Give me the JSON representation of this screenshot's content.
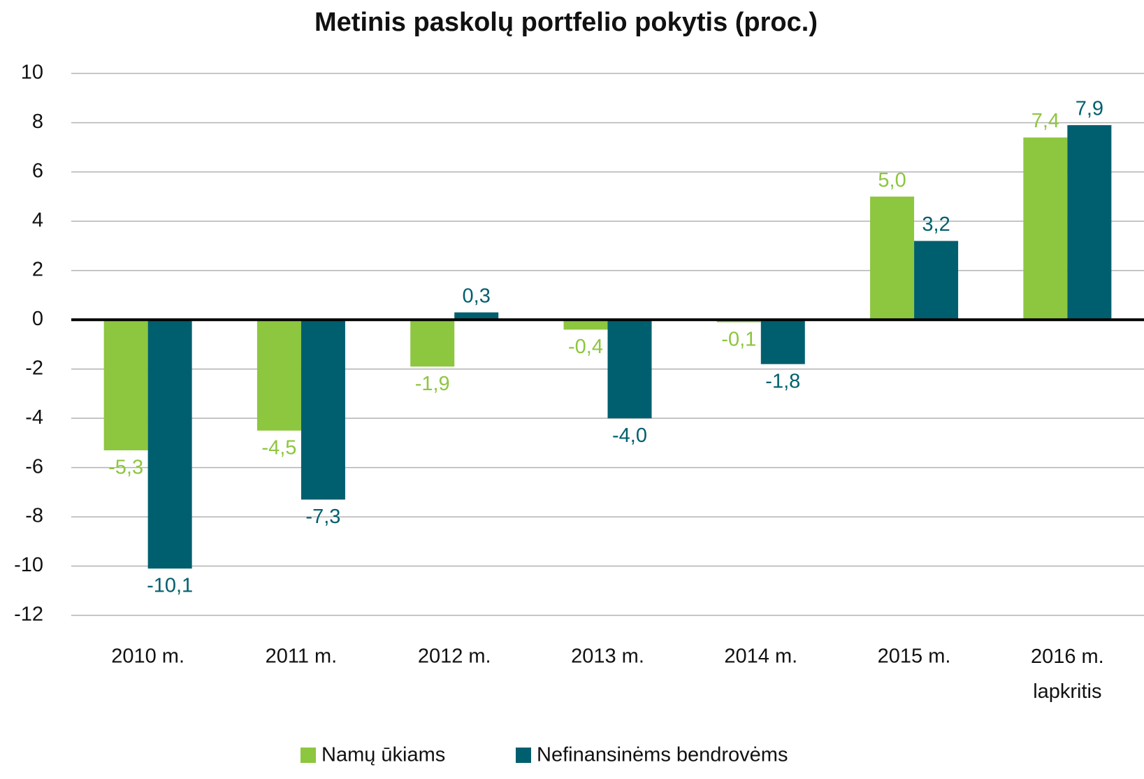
{
  "chart_data": {
    "type": "bar",
    "title": "Metinis paskolų portfelio pokytis (proc.)",
    "categories": [
      "2010 m.",
      "2011 m.",
      "2012 m.",
      "2013 m.",
      "2014 m.",
      "2015 m.",
      "2016 m. lapkritis"
    ],
    "series": [
      {
        "name": "Namų ūkiams",
        "color": "#8dc63f",
        "values": [
          -5.3,
          -4.5,
          -1.9,
          -0.4,
          -0.1,
          5.0,
          7.4
        ],
        "value_labels": [
          "-5,3",
          "-4,5",
          "-1,9",
          "-0,4",
          "-0,1",
          "5,0",
          "7,4"
        ]
      },
      {
        "name": "Nefinansinėms bendrovėms",
        "color": "#005f6e",
        "values": [
          -10.1,
          -7.3,
          0.3,
          -4.0,
          -1.8,
          3.2,
          7.9
        ],
        "value_labels": [
          "-10,1",
          "-7,3",
          "0,3",
          "-4,0",
          "-1,8",
          "3,2",
          "7,9"
        ]
      }
    ],
    "ylim": [
      -12,
      10
    ],
    "yticks": [
      -12,
      -10,
      -8,
      -6,
      -4,
      -2,
      0,
      2,
      4,
      6,
      8,
      10
    ],
    "grid": true,
    "legend": "bottom"
  }
}
